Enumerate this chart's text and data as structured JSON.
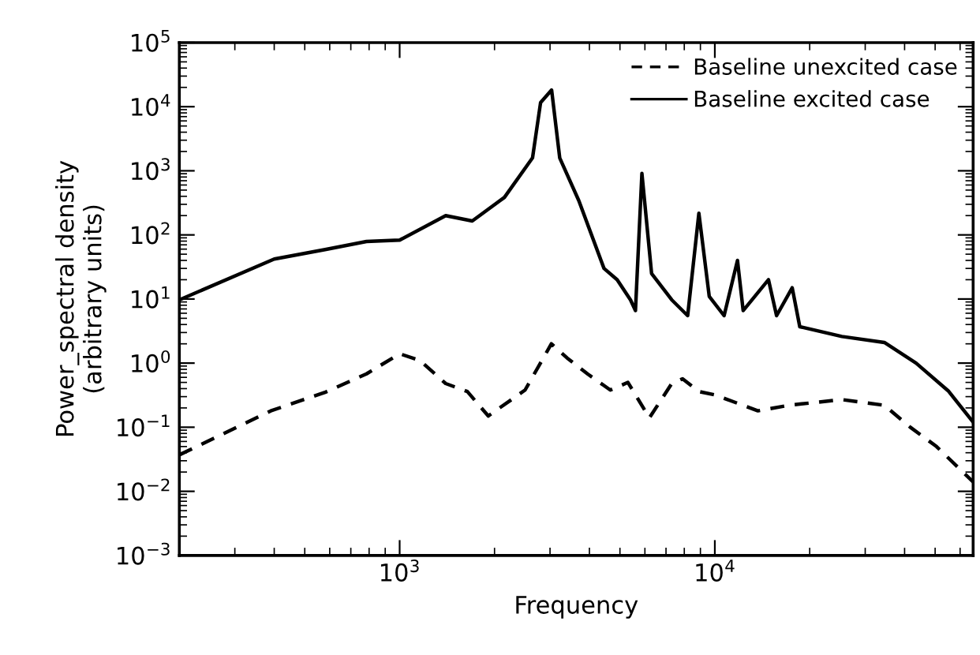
{
  "chart_data": {
    "type": "line",
    "xlabel": "Frequency",
    "ylabel": "Power_spectral density\n(arbitrary units)",
    "log": "xy",
    "xlim": [
      200,
      66000
    ],
    "ylim": [
      0.001,
      100000
    ],
    "xticks": [
      {
        "value": 1000,
        "label": "10$^{3}$"
      },
      {
        "value": 10000,
        "label": "10$^{4}$"
      }
    ],
    "yticks": [
      {
        "value": 0.001,
        "label": "10$^{−3}$"
      },
      {
        "value": 0.01,
        "label": "10$^{−2}$"
      },
      {
        "value": 0.1,
        "label": "10$^{−1}$"
      },
      {
        "value": 1,
        "label": "10$^{0}$"
      },
      {
        "value": 10,
        "label": "10$^{1}$"
      },
      {
        "value": 100,
        "label": "10$^{2}$"
      },
      {
        "value": 1000,
        "label": "10$^{3}$"
      },
      {
        "value": 10000,
        "label": "10$^{4}$"
      },
      {
        "value": 100000,
        "label": "10$^{5}$"
      }
    ],
    "grid": false,
    "legend": "top right",
    "marker": "none",
    "series": [
      {
        "name": "Baseline unexcited case",
        "color": "#000000",
        "line_style": "dashed",
        "x": [
          200,
          390,
          580,
          785,
          1000,
          1160,
          1400,
          1640,
          1910,
          2500,
          3030,
          3400,
          3960,
          4660,
          5300,
          6200,
          7300,
          7900,
          8900,
          10000,
          13700,
          17200,
          25300,
          34500,
          41700,
          50500,
          66000
        ],
        "values": [
          0.037,
          0.18,
          0.35,
          0.68,
          1.4,
          1.1,
          0.48,
          0.36,
          0.15,
          0.38,
          2.0,
          1.2,
          0.67,
          0.38,
          0.5,
          0.14,
          0.48,
          0.57,
          0.36,
          0.32,
          0.18,
          0.22,
          0.27,
          0.22,
          0.1,
          0.05,
          0.014
        ]
      },
      {
        "name": "Baseline excited case",
        "color": "#000000",
        "line_style": "solid",
        "x": [
          200,
          400,
          580,
          785,
          1000,
          1400,
          1700,
          2150,
          2640,
          2800,
          3035,
          3220,
          3700,
          4450,
          4900,
          5400,
          5600,
          5870,
          6300,
          7300,
          8200,
          8900,
          9600,
          10700,
          11800,
          12300,
          14800,
          15700,
          17600,
          18600,
          25300,
          34500,
          43500,
          55000,
          66000
        ],
        "values": [
          9.7,
          42,
          59,
          79,
          83,
          200,
          165,
          385,
          1590,
          11600,
          18200,
          1590,
          345,
          30,
          20,
          9.7,
          6.6,
          910,
          25,
          9.7,
          5.5,
          218,
          11,
          5.5,
          40,
          6.6,
          20,
          5.5,
          15,
          3.7,
          2.6,
          2.1,
          1.0,
          0.37,
          0.12
        ]
      }
    ]
  }
}
